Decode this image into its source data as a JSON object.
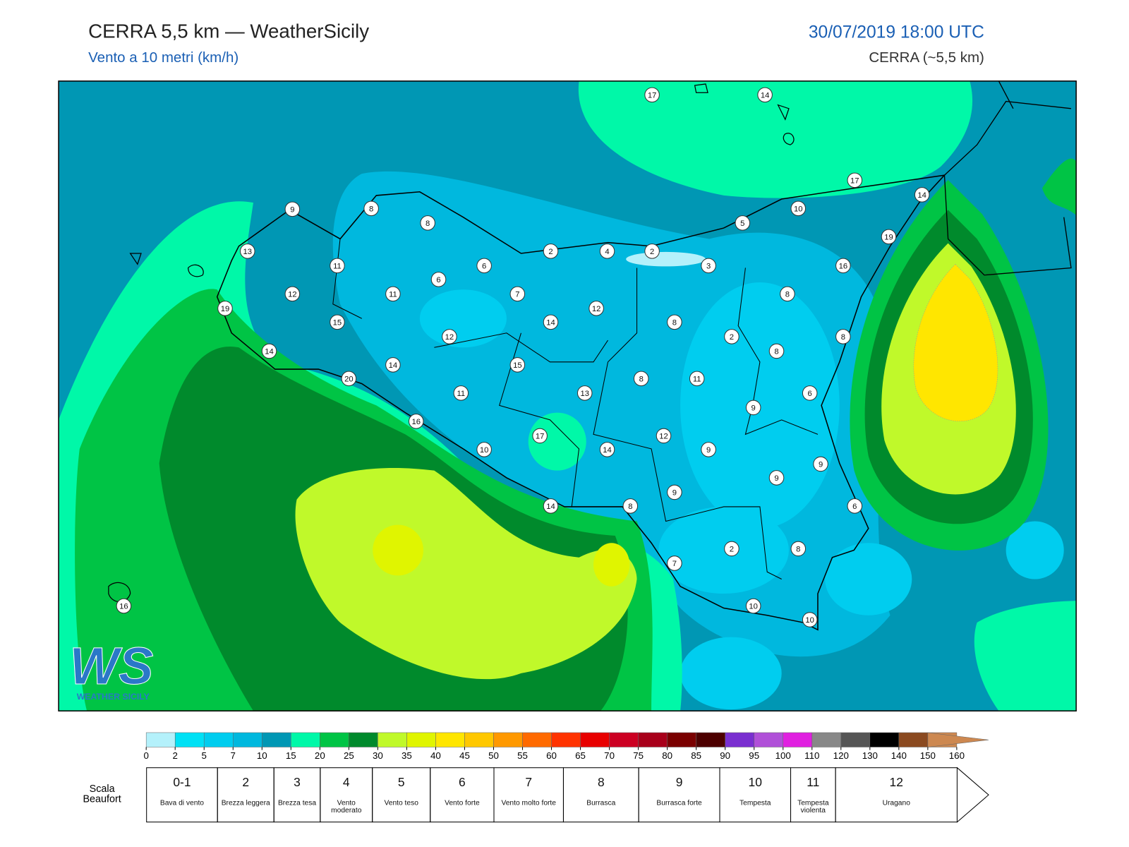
{
  "header": {
    "title": "CERRA 5,5 km — WeatherSicily",
    "subtitle": "Vento a 10 metri (km/h)",
    "datetime": "30/07/2019 18:00 UTC",
    "model": "CERRA (~5,5 km)"
  },
  "stations": [
    17,
    14,
    17,
    14,
    10,
    5,
    19,
    9,
    8,
    8,
    13,
    11,
    2,
    4,
    2,
    3,
    16,
    6,
    6,
    12,
    11,
    7,
    8,
    19,
    15,
    14,
    12,
    8,
    12,
    2,
    8,
    14,
    8,
    14,
    15,
    20,
    8,
    11,
    11,
    13,
    6,
    9,
    16,
    17,
    12,
    10,
    14,
    9,
    9,
    9,
    9,
    14,
    8,
    6,
    2,
    8,
    7,
    10,
    10,
    16
  ],
  "colorbar": {
    "ticks": [
      0,
      2,
      5,
      7,
      10,
      15,
      20,
      25,
      30,
      35,
      40,
      45,
      50,
      55,
      60,
      65,
      70,
      75,
      80,
      85,
      90,
      95,
      100,
      110,
      120,
      130,
      140,
      150,
      160
    ],
    "colors": [
      "#b4f1fb",
      "#00e1f5",
      "#00cdef",
      "#00b8de",
      "#0097b4",
      "#00f8a8",
      "#00c445",
      "#008a2c",
      "#c0f92a",
      "#e0f500",
      "#ffe600",
      "#ffc800",
      "#ff9900",
      "#ff6a00",
      "#ff3300",
      "#e80000",
      "#cc0022",
      "#a8001a",
      "#7a0000",
      "#4d0000",
      "#7a2fd0",
      "#b050d8",
      "#e020e0",
      "#888888",
      "#555555",
      "#000000",
      "#8b4a20",
      "#cd8850"
    ]
  },
  "beaufort": {
    "title": "Scala Beaufort",
    "levels": [
      {
        "force": "0-1",
        "description": "Bava di vento"
      },
      {
        "force": "2",
        "description": "Brezza leggera"
      },
      {
        "force": "3",
        "description": "Brezza tesa"
      },
      {
        "force": "4",
        "description": "Vento moderato"
      },
      {
        "force": "5",
        "description": "Vento teso"
      },
      {
        "force": "6",
        "description": "Vento forte"
      },
      {
        "force": "7",
        "description": "Vento molto forte"
      },
      {
        "force": "8",
        "description": "Burrasca"
      },
      {
        "force": "9",
        "description": "Burrasca forte"
      },
      {
        "force": "10",
        "description": "Tempesta"
      },
      {
        "force": "11",
        "description": "Tempesta violenta"
      },
      {
        "force": "12",
        "description": "Uragano"
      }
    ]
  },
  "logo": {
    "mark": "WS",
    "name": "WEATHER SICILY"
  }
}
